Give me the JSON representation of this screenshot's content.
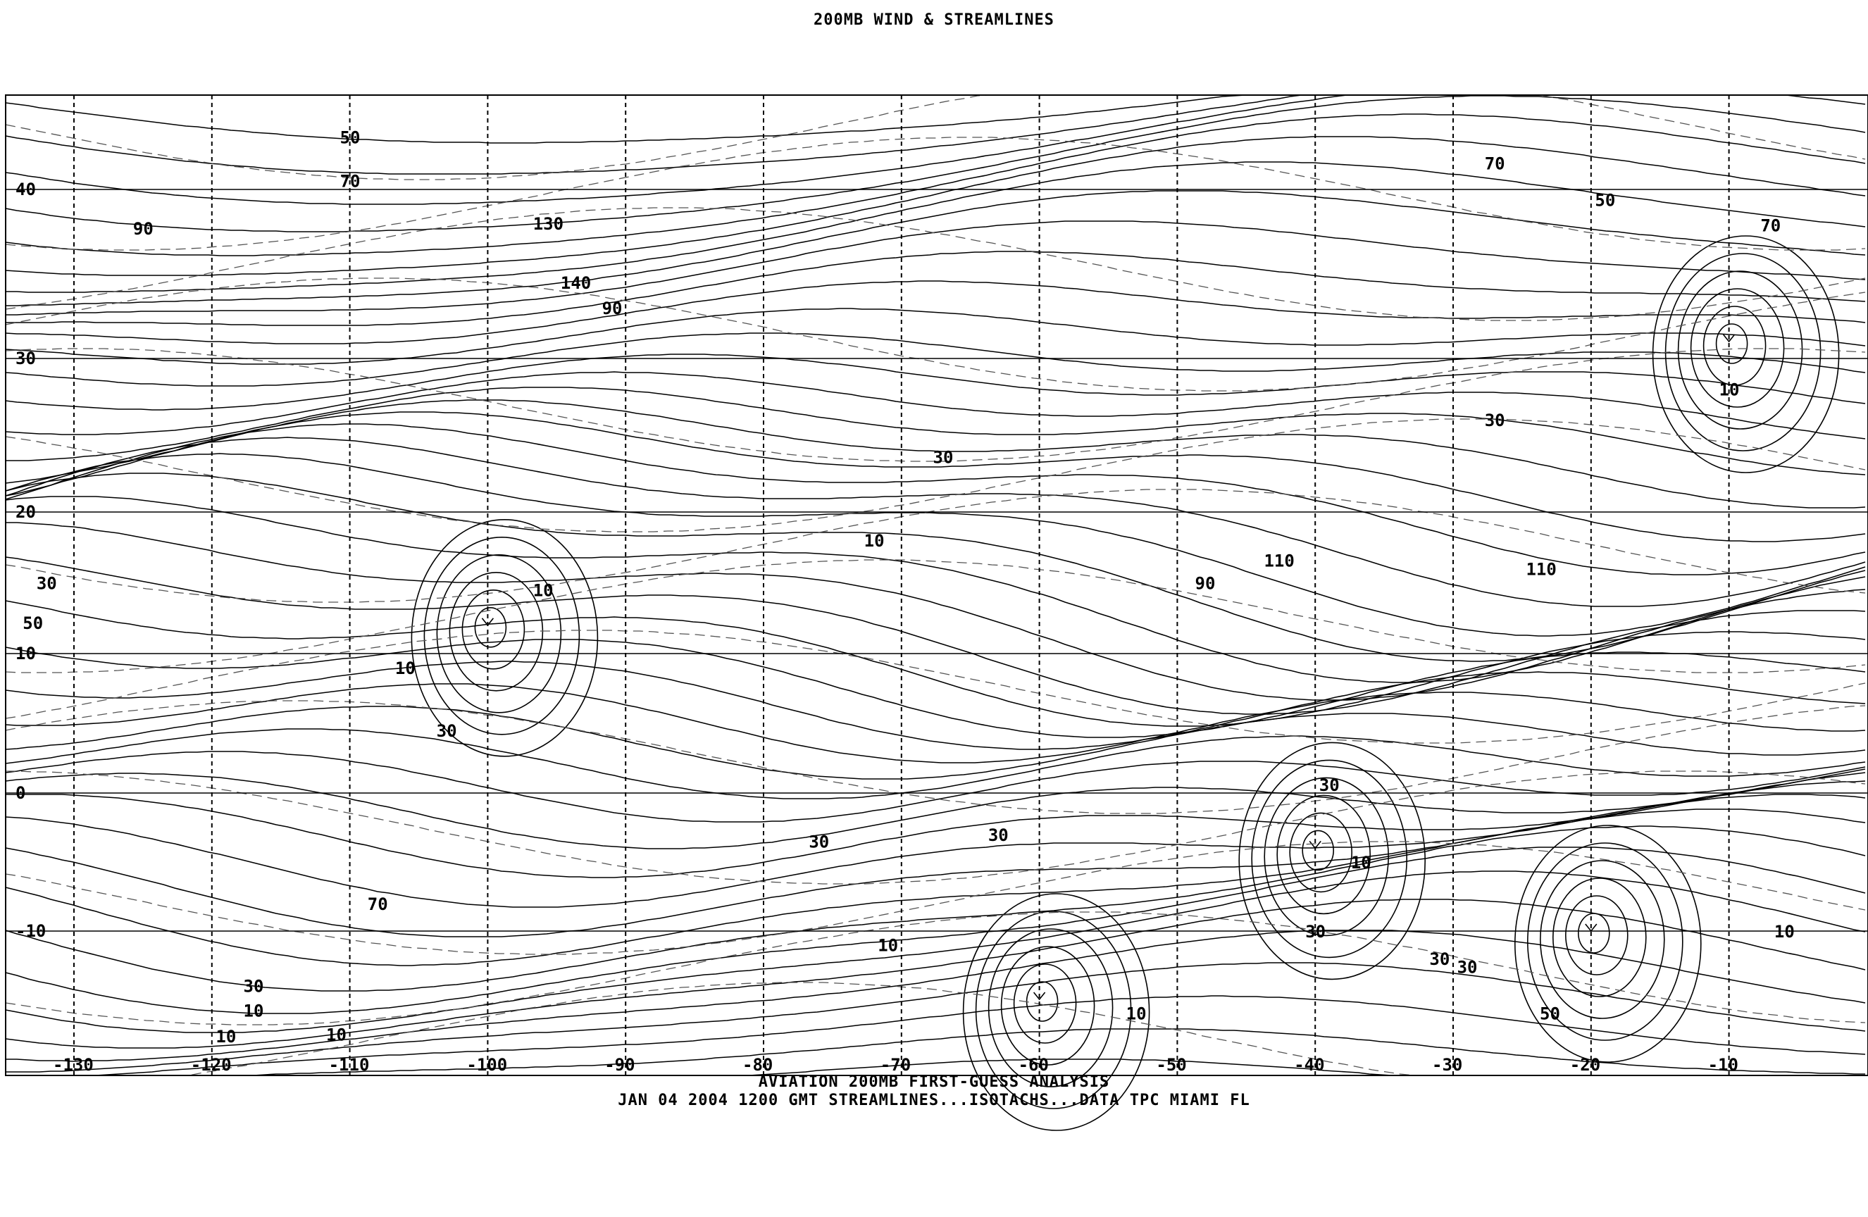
{
  "header": {
    "title": "200MB WIND & STREAMLINES"
  },
  "footer": {
    "line1": "AVIATION 200MB FIRST-GUESS ANALYSIS",
    "line2": "JAN 04 2004 1200 GMT   STREAMLINES...ISOTACHS...DATA   TPC MIAMI FL"
  },
  "map": {
    "latitude_labels": [
      {
        "lat": 40,
        "text": "40"
      },
      {
        "lat": 30,
        "text": "30"
      },
      {
        "lat": 20,
        "text": "20"
      },
      {
        "lat": 10,
        "text": "10"
      },
      {
        "lat": 0,
        "text": "0"
      },
      {
        "lat": -10,
        "text": "-10"
      }
    ],
    "longitude_labels": [
      {
        "lon": -130,
        "text": "-130"
      },
      {
        "lon": -120,
        "text": "-120"
      },
      {
        "lon": -110,
        "text": "-110"
      },
      {
        "lon": -100,
        "text": "-100"
      },
      {
        "lon": -90,
        "text": "-90"
      },
      {
        "lon": -80,
        "text": "-80"
      },
      {
        "lon": -70,
        "text": "-70"
      },
      {
        "lon": -60,
        "text": "-60"
      },
      {
        "lon": -50,
        "text": "-50"
      },
      {
        "lon": -40,
        "text": "-40"
      },
      {
        "lon": -30,
        "text": "-30"
      },
      {
        "lon": -20,
        "text": "-20"
      },
      {
        "lon": -10,
        "text": "-10"
      }
    ],
    "isotach_labels": [
      {
        "text": "50",
        "lon": -110,
        "lat": 43
      },
      {
        "text": "70",
        "lon": -110,
        "lat": 40.5
      },
      {
        "text": "90",
        "lon": -125,
        "lat": 37.7
      },
      {
        "text": "130",
        "lon": -96,
        "lat": 38
      },
      {
        "text": "140",
        "lon": -94,
        "lat": 34.5
      },
      {
        "text": "90",
        "lon": -91,
        "lat": 33
      },
      {
        "text": "30",
        "lon": -67,
        "lat": 23.6
      },
      {
        "text": "30",
        "lon": -27,
        "lat": 26
      },
      {
        "text": "70",
        "lon": -27,
        "lat": 41.5
      },
      {
        "text": "50",
        "lon": -19,
        "lat": 39.4
      },
      {
        "text": "70",
        "lon": -7,
        "lat": 37.9
      },
      {
        "text": "10",
        "lon": -10,
        "lat": 28
      },
      {
        "text": "10",
        "lon": -72,
        "lat": 18
      },
      {
        "text": "110",
        "lon": -43,
        "lat": 16.6
      },
      {
        "text": "110",
        "lon": -24,
        "lat": 16
      },
      {
        "text": "90",
        "lon": -48,
        "lat": 15
      },
      {
        "text": "10",
        "lon": -96,
        "lat": 14.5
      },
      {
        "text": "30",
        "lon": -132,
        "lat": 15
      },
      {
        "text": "50",
        "lon": -133,
        "lat": 11.5
      },
      {
        "text": "10",
        "lon": -106,
        "lat": 9
      },
      {
        "text": "30",
        "lon": -103,
        "lat": 4.5
      },
      {
        "text": "30",
        "lon": -76,
        "lat": -3.5
      },
      {
        "text": "30",
        "lon": -63,
        "lat": -3
      },
      {
        "text": "30",
        "lon": -39,
        "lat": 0.6
      },
      {
        "text": "10",
        "lon": -36.7,
        "lat": -5
      },
      {
        "text": "70",
        "lon": -108,
        "lat": -8
      },
      {
        "text": "10",
        "lon": -71,
        "lat": -11
      },
      {
        "text": "10",
        "lon": -53,
        "lat": -16
      },
      {
        "text": "30",
        "lon": -40,
        "lat": -10
      },
      {
        "text": "30",
        "lon": -31,
        "lat": -12
      },
      {
        "text": "30",
        "lon": -29,
        "lat": -12.6
      },
      {
        "text": "10",
        "lon": -6,
        "lat": -10
      },
      {
        "text": "50",
        "lon": -23,
        "lat": -16
      },
      {
        "text": "30",
        "lon": -117,
        "lat": -14
      },
      {
        "text": "10",
        "lon": -117,
        "lat": -15.8
      },
      {
        "text": "10",
        "lon": -119,
        "lat": -18.4
      },
      {
        "text": "10",
        "lon": -111,
        "lat": -19
      }
    ],
    "circulation_centers": [
      {
        "lon": -100,
        "lat": 12
      },
      {
        "lon": -20,
        "lat": -10
      },
      {
        "lon": -60,
        "lat": -15
      },
      {
        "lon": -10,
        "lat": 31
      },
      {
        "lon": -40,
        "lat": -4
      }
    ]
  }
}
